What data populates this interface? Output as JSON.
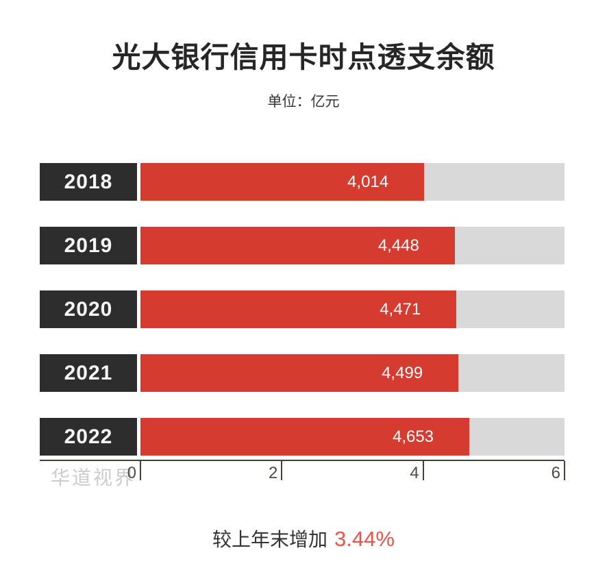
{
  "title": "光大银行信用卡时点透支余额",
  "unit_label": "单位：亿元",
  "watermark": "华道视界",
  "footnote": {
    "prefix": "较上年末增加",
    "value": "3.44%"
  },
  "colors": {
    "bar_red": "#d63b2f",
    "year_box_dark": "#2d2d2d",
    "track_grey": "#d9d9d9",
    "note_red": "#e4564a",
    "axis_dark": "#454036"
  },
  "chart_data": {
    "type": "bar",
    "orientation": "horizontal",
    "title": "光大银行信用卡时点透支余额",
    "unit": "亿元",
    "categories": [
      "2018",
      "2019",
      "2020",
      "2021",
      "2022"
    ],
    "values": [
      4014,
      4448,
      4471,
      4499,
      4653
    ],
    "value_labels": [
      "4,014",
      "4,448",
      "4,471",
      "4,499",
      "4,653"
    ],
    "xlim": [
      0,
      6000
    ],
    "x_ticks": [
      0,
      2,
      4,
      6
    ],
    "x_tick_unit_multiplier": 1000,
    "grid": false,
    "legend": false,
    "annotation": "较上年末增加 3.44%"
  }
}
